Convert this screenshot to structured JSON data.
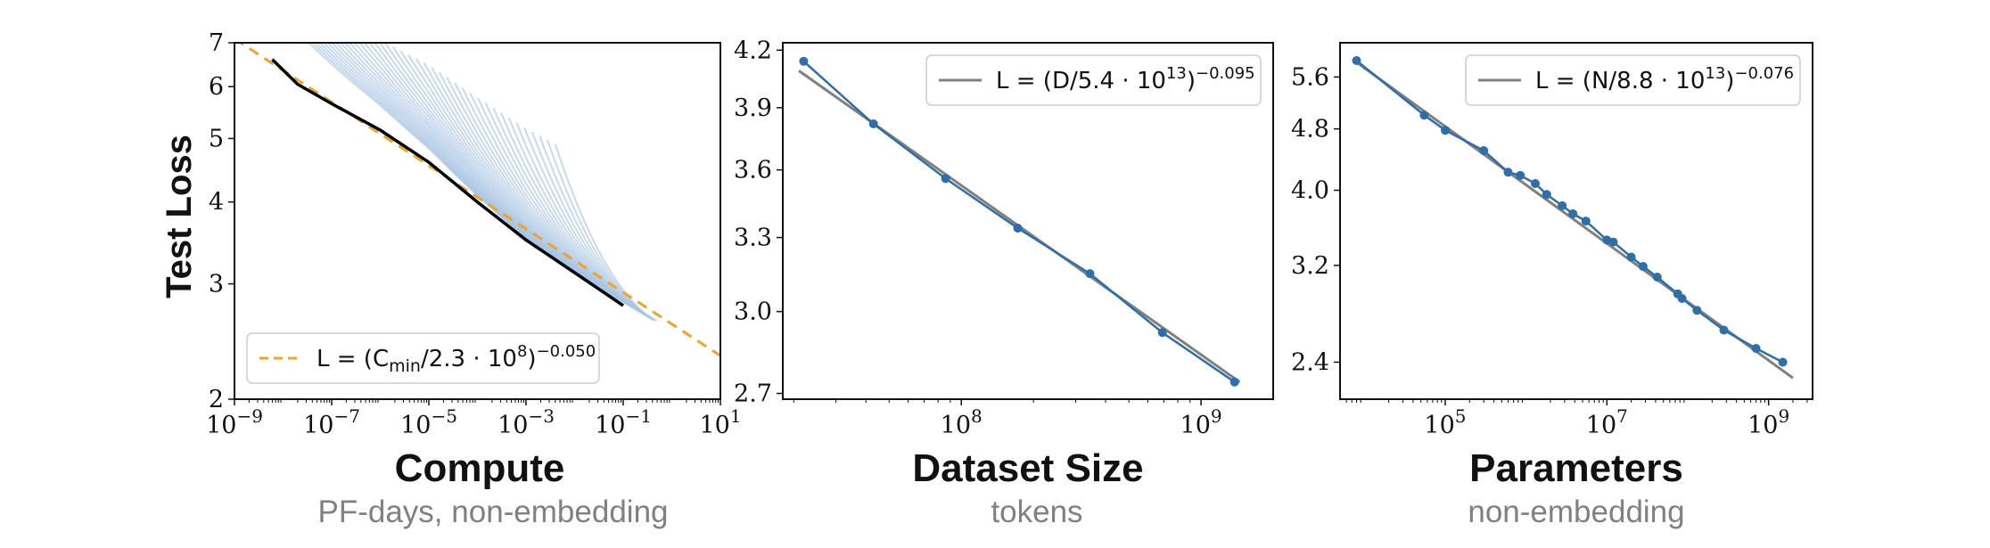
{
  "chart_data": [
    {
      "id": "compute",
      "type": "line",
      "title": "",
      "xlabel": "Compute",
      "xlabel_sub": "PF-days, non-embedding",
      "ylabel": "Test Loss",
      "xscale": "log",
      "yscale": "log",
      "xlim": [
        1e-09,
        10
      ],
      "ylim": [
        2,
        7
      ],
      "xticks": [
        {
          "value": 1e-09,
          "base": "10",
          "exp": "−9"
        },
        {
          "value": 1e-07,
          "base": "10",
          "exp": "−7"
        },
        {
          "value": 1e-05,
          "base": "10",
          "exp": "−5"
        },
        {
          "value": 0.001,
          "base": "10",
          "exp": "−3"
        },
        {
          "value": 0.1,
          "base": "10",
          "exp": "−1"
        },
        {
          "value": 10,
          "base": "10",
          "exp": "1"
        }
      ],
      "yticks": [
        {
          "value": 2,
          "label": "2"
        },
        {
          "value": 3,
          "label": "3"
        },
        {
          "value": 4,
          "label": "4"
        },
        {
          "value": 5,
          "label": "5"
        },
        {
          "value": 6,
          "label": "6"
        },
        {
          "value": 7,
          "label": "7"
        }
      ],
      "legend": {
        "location": "lower-left",
        "entries": [
          {
            "style": "dashed",
            "color": "#f0a32b",
            "formula": "L = (C_min / 2.3·10^8)^(−0.050)"
          }
        ]
      },
      "legend_parts": {
        "pre": "L = (C",
        "sub": "min",
        "mid": "/2.3 · 10",
        "sup1": "8",
        "post": ")",
        "sup2": "−0.050"
      },
      "series": [
        {
          "role": "frontier",
          "color": "#000000",
          "x": [
            6e-09,
            2e-08,
            1e-07,
            1e-06,
            1e-05,
            0.0001,
            0.001,
            0.01,
            0.1
          ],
          "y": [
            6.6,
            6.05,
            5.65,
            5.15,
            4.6,
            4.0,
            3.5,
            3.12,
            2.78
          ]
        },
        {
          "role": "fit",
          "color": "#f0a32b",
          "style": "dashed",
          "x": [
            1e-09,
            10
          ],
          "y": [
            7.1,
            2.33
          ]
        }
      ],
      "run_curves": {
        "color": "#a9c5e3",
        "count": 40,
        "x_end": [
          0.02,
          0.5
        ]
      }
    },
    {
      "id": "dataset",
      "type": "line",
      "title": "",
      "xlabel": "Dataset Size",
      "xlabel_sub": "tokens",
      "xscale": "log",
      "yscale": "log",
      "xlim": [
        18000000.0,
        2000000000.0
      ],
      "ylim": [
        2.68,
        4.24
      ],
      "xticks": [
        {
          "value": 100000000.0,
          "base": "10",
          "exp": "8"
        },
        {
          "value": 1000000000.0,
          "base": "10",
          "exp": "9"
        }
      ],
      "yticks": [
        {
          "value": 2.7,
          "label": "2.7"
        },
        {
          "value": 3.0,
          "label": "3.0"
        },
        {
          "value": 3.3,
          "label": "3.3"
        },
        {
          "value": 3.6,
          "label": "3.6"
        },
        {
          "value": 3.9,
          "label": "3.9"
        },
        {
          "value": 4.2,
          "label": "4.2"
        }
      ],
      "legend": {
        "location": "upper-right",
        "entries": [
          {
            "style": "solid",
            "color": "#808080",
            "formula": "L = (D / 5.4·10^13)^(−0.095)"
          }
        ]
      },
      "legend_parts": {
        "pre": "L = (D/5.4 · 10",
        "sup1": "13",
        "post": ")",
        "sup2": "−0.095"
      },
      "series": [
        {
          "role": "data",
          "color": "#2f6ea8",
          "x": [
            22000000.0,
            43000000.0,
            86000000.0,
            172000000.0,
            344000000.0,
            690000000.0,
            1380000000.0
          ],
          "y": [
            4.14,
            3.82,
            3.56,
            3.34,
            3.15,
            2.92,
            2.74
          ]
        },
        {
          "role": "fit",
          "color": "#808080",
          "x": [
            21000000.0,
            1450000000.0
          ],
          "y": [
            4.09,
            2.74
          ]
        }
      ]
    },
    {
      "id": "parameters",
      "type": "line",
      "title": "",
      "xlabel": "Parameters",
      "xlabel_sub": "non-embedding",
      "xscale": "log",
      "yscale": "log",
      "xlim": [
        5000.0,
        3500000000.0
      ],
      "ylim": [
        2.15,
        6.2
      ],
      "xticks": [
        {
          "value": 100000.0,
          "base": "10",
          "exp": "5"
        },
        {
          "value": 10000000.0,
          "base": "10",
          "exp": "7"
        },
        {
          "value": 1000000000.0,
          "base": "10",
          "exp": "9"
        }
      ],
      "yticks": [
        {
          "value": 2.4,
          "label": "2.4"
        },
        {
          "value": 3.2,
          "label": "3.2"
        },
        {
          "value": 4.0,
          "label": "4.0"
        },
        {
          "value": 4.8,
          "label": "4.8"
        },
        {
          "value": 5.6,
          "label": "5.6"
        }
      ],
      "legend": {
        "location": "upper-right",
        "entries": [
          {
            "style": "solid",
            "color": "#808080",
            "formula": "L = (N / 8.8·10^13)^(−0.076)"
          }
        ]
      },
      "legend_parts": {
        "pre": "L = (N/8.8 · 10",
        "sup1": "13",
        "post": ")",
        "sup2": "−0.076"
      },
      "series": [
        {
          "role": "data",
          "color": "#2f6ea8",
          "x": [
            8000.0,
            55000.0,
            100000.0,
            300000.0,
            600000.0,
            850000.0,
            1300000.0,
            1800000.0,
            2800000.0,
            3800000.0,
            5500000.0,
            10000000.0,
            12000000.0,
            20000000.0,
            28000000.0,
            42000000.0,
            75000000.0,
            85000000.0,
            130000000.0,
            280000000.0,
            700000000.0,
            1500000000.0
          ],
          "y": [
            5.88,
            5.0,
            4.78,
            4.5,
            4.22,
            4.18,
            4.08,
            3.95,
            3.82,
            3.73,
            3.65,
            3.45,
            3.43,
            3.28,
            3.19,
            3.09,
            2.94,
            2.9,
            2.8,
            2.64,
            2.5,
            2.4
          ]
        },
        {
          "role": "fit",
          "color": "#808080",
          "x": [
            8000.0,
            2000000000.0
          ],
          "y": [
            5.85,
            2.29
          ]
        }
      ]
    }
  ]
}
